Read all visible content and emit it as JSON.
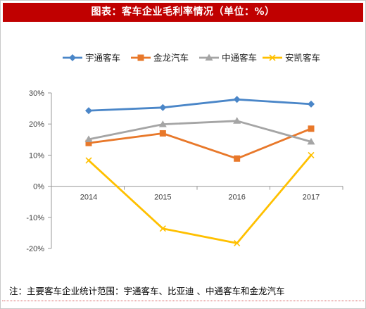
{
  "header": {
    "title": "图表：客车企业毛利率情况（单位：%）"
  },
  "footer": {
    "note": "注：主要客车企业统计范围：宇通客车、比亚迪 、中通客车和金龙汽车"
  },
  "colors": {
    "title_bg": "#c00000"
  },
  "chart_data": {
    "type": "line",
    "title": "",
    "xlabel": "",
    "ylabel": "",
    "categories": [
      "2014",
      "2015",
      "2016",
      "2017"
    ],
    "yticks": [
      "30%",
      "20%",
      "10%",
      "0%",
      "-10%",
      "-20%"
    ],
    "ylim": [
      -20,
      30
    ],
    "legend_position": "top",
    "grid": false,
    "series": [
      {
        "name": "宇通客车",
        "color": "#4a86c8",
        "marker": "diamond",
        "values": [
          24.3,
          25.3,
          27.9,
          26.4
        ]
      },
      {
        "name": "金龙汽车",
        "color": "#e8782a",
        "marker": "square",
        "values": [
          13.9,
          17.0,
          8.9,
          18.5
        ]
      },
      {
        "name": "中通客车",
        "color": "#a5a5a5",
        "marker": "triangle",
        "values": [
          15.1,
          19.9,
          21.0,
          14.3
        ]
      },
      {
        "name": "安凯客车",
        "color": "#ffc000",
        "marker": "x",
        "values": [
          8.3,
          -13.6,
          -18.3,
          10.0
        ]
      }
    ]
  }
}
